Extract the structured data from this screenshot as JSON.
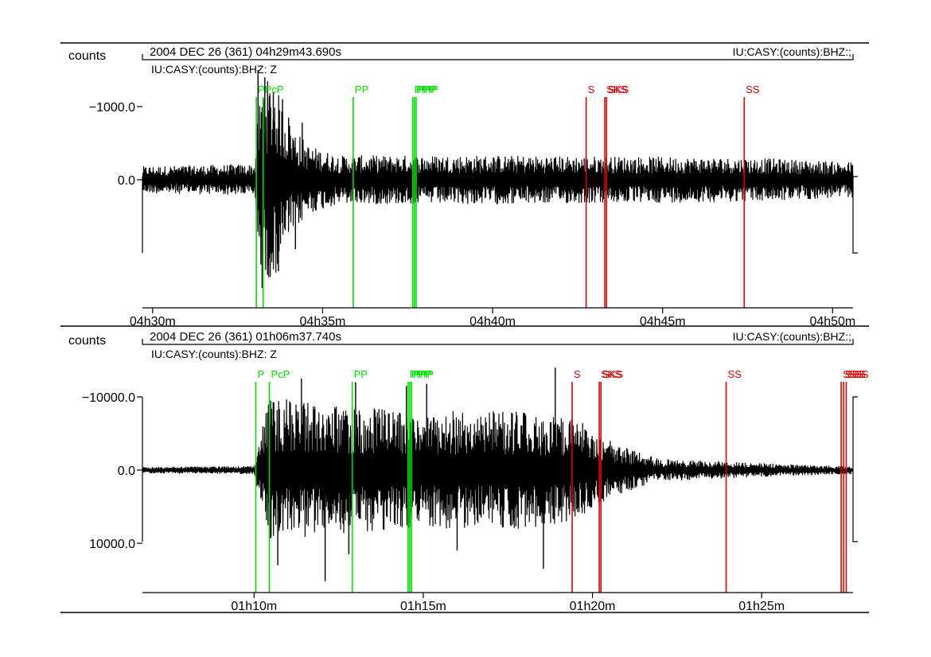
{
  "panels": [
    {
      "unit_label": "counts",
      "header_left": "2004 DEC 26 (361)  04h29m43.690s",
      "header_right": "IU:CASY:(counts):BHZ:;",
      "channel_label": "IU:CASY:(counts):BHZ: Z"
    },
    {
      "unit_label": "counts",
      "header_left": "2004 DEC 26 (361)  01h06m37.740s",
      "header_right": "IU:CASY:(counts):BHZ:;",
      "channel_label": "IU:CASY:(counts):BHZ: Z"
    }
  ],
  "colors": {
    "trace": "#000000",
    "p_phase": "#00e000",
    "s_phase": "#e00000"
  },
  "chart_data": [
    {
      "type": "line",
      "title": "2004 DEC 26 (361)  04h29m43.690s",
      "xlabel": "",
      "ylabel": "counts",
      "xlim": [
        29.7,
        50.6
      ],
      "ylim": [
        -1750,
        1450
      ],
      "x_ticks": [
        {
          "value": 30,
          "label": "04h30m"
        },
        {
          "value": 35,
          "label": "04h35m"
        },
        {
          "value": 40,
          "label": "04h40m"
        },
        {
          "value": 45,
          "label": "04h45m"
        },
        {
          "value": 50,
          "label": "04h50m"
        }
      ],
      "y_ticks": [
        {
          "value": 0,
          "label": "0.0"
        },
        {
          "value": -1000,
          "label": "−1000.0"
        }
      ],
      "grid": false,
      "series": [
        {
          "x_start": 29.7,
          "x_end": 50.6,
          "y_scale": 1,
          "envelope": [
            [
              29.7,
              180
            ],
            [
              33.0,
              210
            ],
            [
              33.1,
              900
            ],
            [
              33.25,
              1400
            ],
            [
              33.6,
              1300
            ],
            [
              34.0,
              800
            ],
            [
              34.6,
              460
            ],
            [
              35.5,
              330
            ],
            [
              40.0,
              330
            ],
            [
              45.0,
              310
            ],
            [
              48.0,
              290
            ],
            [
              50.6,
              240
            ]
          ],
          "spikes": [
            [
              33.1,
              -1500
            ],
            [
              33.22,
              1480
            ],
            [
              33.3,
              -1400
            ],
            [
              33.38,
              1300
            ],
            [
              33.55,
              -1200
            ],
            [
              33.7,
              1250
            ],
            [
              33.82,
              -1100
            ],
            [
              34.0,
              -850
            ],
            [
              34.2,
              950
            ],
            [
              34.4,
              -780
            ]
          ]
        }
      ],
      "phases": [
        {
          "label": "P",
          "time": 33.05,
          "color": "green"
        },
        {
          "label": "PcP",
          "time": 33.25,
          "color": "green"
        },
        {
          "label": "PP",
          "time": 35.9,
          "color": "green"
        },
        {
          "label": "PPP",
          "time": 37.65,
          "color": "green"
        },
        {
          "label": "PPP",
          "time": 37.7,
          "color": "green"
        },
        {
          "label": "PPP",
          "time": 37.75,
          "color": "green"
        },
        {
          "label": "S",
          "time": 42.75,
          "color": "red"
        },
        {
          "label": "SKS",
          "time": 43.3,
          "color": "red"
        },
        {
          "label": "SKS",
          "time": 43.35,
          "color": "red"
        },
        {
          "label": "SS",
          "time": 47.4,
          "color": "red"
        }
      ]
    },
    {
      "type": "line",
      "title": "2004 DEC 26 (361)  01h06m37.740s",
      "xlabel": "",
      "ylabel": "counts",
      "xlim": [
        6.7,
        27.7
      ],
      "ylim": [
        -17500,
        10300
      ],
      "x_ticks": [
        {
          "value": 10,
          "label": "01h10m"
        },
        {
          "value": 15,
          "label": "01h15m"
        },
        {
          "value": 20,
          "label": "01h20m"
        },
        {
          "value": 25,
          "label": "01h25m"
        }
      ],
      "y_ticks": [
        {
          "value": 10000,
          "label": "10000.0"
        },
        {
          "value": 0,
          "label": "0.0"
        },
        {
          "value": -10000,
          "label": "−10000.0"
        }
      ],
      "grid": false,
      "series": [
        {
          "x_start": 6.7,
          "x_end": 27.7,
          "y_scale": 10,
          "envelope": [
            [
              6.7,
              40
            ],
            [
              10.0,
              50
            ],
            [
              10.15,
              400
            ],
            [
              10.4,
              900
            ],
            [
              10.6,
              1000
            ],
            [
              12.0,
              880
            ],
            [
              15.0,
              800
            ],
            [
              18.0,
              800
            ],
            [
              19.5,
              700
            ],
            [
              20.2,
              500
            ],
            [
              21.0,
              300
            ],
            [
              22.0,
              150
            ],
            [
              24.0,
              110
            ],
            [
              26.0,
              70
            ],
            [
              27.7,
              50
            ]
          ],
          "spikes": [
            [
              10.7,
              1300
            ],
            [
              11.4,
              -1250
            ],
            [
              12.1,
              1520
            ],
            [
              13.0,
              -1200
            ],
            [
              15.1,
              -1180
            ],
            [
              18.55,
              1350
            ],
            [
              18.9,
              -1400
            ],
            [
              12.8,
              1150
            ],
            [
              16.0,
              1100
            ],
            [
              14.5,
              -1150
            ]
          ]
        }
      ],
      "phases": [
        {
          "label": "P",
          "time": 10.05,
          "color": "green"
        },
        {
          "label": "PcP",
          "time": 10.45,
          "color": "green"
        },
        {
          "label": "PP",
          "time": 12.9,
          "color": "green"
        },
        {
          "label": "PPP",
          "time": 14.55,
          "color": "green"
        },
        {
          "label": "PPP",
          "time": 14.6,
          "color": "green"
        },
        {
          "label": "PPP",
          "time": 14.65,
          "color": "green"
        },
        {
          "label": "S",
          "time": 19.4,
          "color": "red"
        },
        {
          "label": "SKS",
          "time": 20.2,
          "color": "red"
        },
        {
          "label": "SKS",
          "time": 20.25,
          "color": "red"
        },
        {
          "label": "SS",
          "time": 23.95,
          "color": "red"
        },
        {
          "label": "SSS",
          "time": 27.35,
          "color": "red"
        },
        {
          "label": "SSS",
          "time": 27.42,
          "color": "red"
        },
        {
          "label": "SSS",
          "time": 27.5,
          "color": "red"
        }
      ]
    }
  ]
}
